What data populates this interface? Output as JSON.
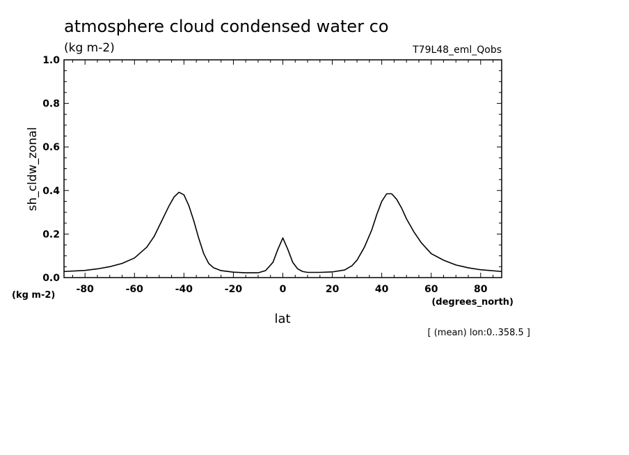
{
  "chart_data": {
    "type": "line",
    "title": "atmosphere cloud condensed water co",
    "subtitle_units": "(kg m-2)",
    "experiment": "T79L48_eml_Qobs",
    "ylabel": "sh_cldw_zonal",
    "y_units": "(kg m-2)",
    "xlabel": "lat",
    "x_units": "(degrees_north)",
    "footnote": "[ (mean) lon:0..358.5 ]",
    "xlim": [
      -88.5,
      88.5
    ],
    "ylim": [
      0,
      1
    ],
    "x_ticks": [
      -80,
      -60,
      -40,
      -20,
      0,
      20,
      40,
      60,
      80
    ],
    "x_tick_labels": [
      "-80",
      "-60",
      "-40",
      "-20",
      "0",
      "20",
      "40",
      "60",
      "80"
    ],
    "y_ticks": [
      0,
      0.2,
      0.4,
      0.6,
      0.8,
      1.0
    ],
    "y_tick_labels": [
      "0.0",
      "0.2",
      "0.4",
      "0.6",
      "0.8",
      "1.0"
    ],
    "grid": false,
    "series": [
      {
        "x": [
          -88.5,
          -80,
          -75,
          -70,
          -65,
          -60,
          -55,
          -52,
          -49,
          -46,
          -44,
          -42,
          -40,
          -38,
          -36,
          -34,
          -32,
          -30,
          -28,
          -25,
          -20,
          -15,
          -10,
          -7,
          -4,
          -2,
          0,
          2,
          4,
          6,
          8,
          10,
          15,
          20,
          25,
          28,
          30,
          33,
          36,
          38,
          40,
          42,
          44,
          46,
          48,
          50,
          53,
          56,
          60,
          65,
          70,
          75,
          80,
          88.5
        ],
        "y": [
          0.028,
          0.033,
          0.04,
          0.05,
          0.065,
          0.09,
          0.14,
          0.19,
          0.26,
          0.33,
          0.37,
          0.392,
          0.38,
          0.33,
          0.26,
          0.18,
          0.11,
          0.065,
          0.045,
          0.032,
          0.025,
          0.022,
          0.022,
          0.032,
          0.07,
          0.13,
          0.182,
          0.13,
          0.07,
          0.04,
          0.028,
          0.024,
          0.024,
          0.026,
          0.035,
          0.055,
          0.08,
          0.14,
          0.22,
          0.29,
          0.35,
          0.385,
          0.385,
          0.36,
          0.32,
          0.27,
          0.21,
          0.16,
          0.11,
          0.08,
          0.058,
          0.045,
          0.036,
          0.028
        ]
      }
    ]
  }
}
